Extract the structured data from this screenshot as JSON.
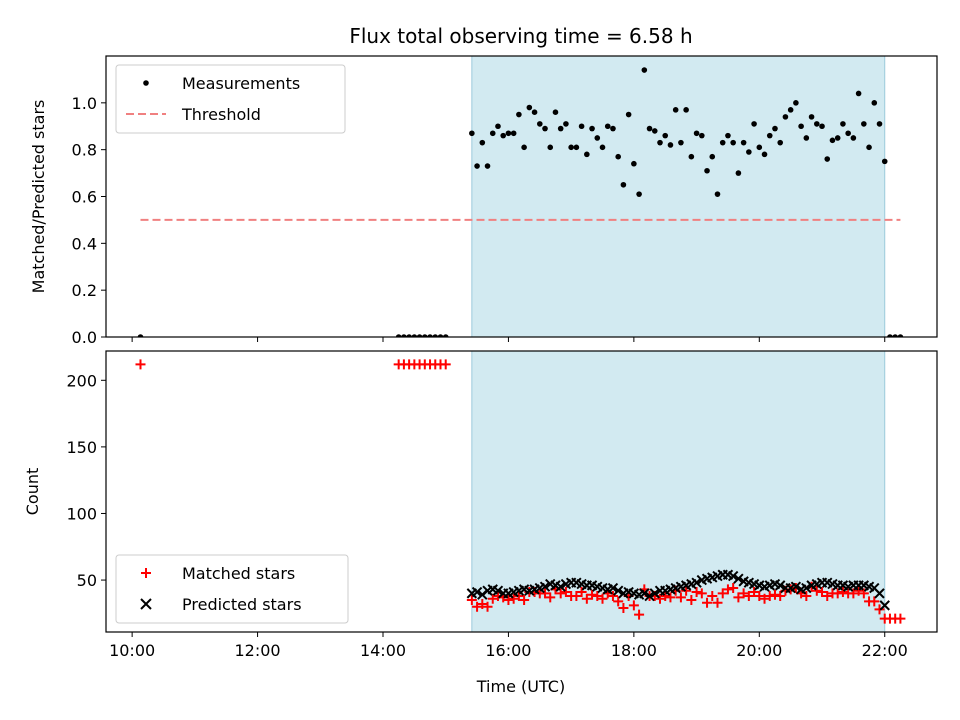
{
  "title": "Flux total observing time = 6.58 h",
  "xlabel": "Time (UTC)",
  "colors": {
    "measurement": "#000000",
    "threshold": "#f08080",
    "matched": "#ff0000",
    "predicted": "#000000",
    "shade": "#add8e6"
  },
  "chart_data": [
    {
      "type": "scatter",
      "ylabel": "Matched/Predicted stars",
      "xlim": [
        "09:35",
        "22:50"
      ],
      "ylim": [
        0,
        1.2
      ],
      "x_ticks": [
        "10:00",
        "12:00",
        "14:00",
        "16:00",
        "18:00",
        "20:00",
        "22:00"
      ],
      "y_ticks": [
        "0.0",
        "0.2",
        "0.4",
        "0.6",
        "0.8",
        "1.0"
      ],
      "y_tick_values": [
        0,
        0.2,
        0.4,
        0.6,
        0.8,
        1.0
      ],
      "shaded_interval": [
        "15:25",
        "22:00"
      ],
      "legend_position": "upper-left",
      "series": [
        {
          "name": "Measurements",
          "marker": "dot",
          "x": [
            "10:08",
            "14:15",
            "14:20",
            "14:25",
            "14:30",
            "14:35",
            "14:40",
            "14:45",
            "14:50",
            "14:55",
            "15:00",
            "15:25",
            "15:30",
            "15:35",
            "15:40",
            "15:45",
            "15:50",
            "15:55",
            "16:00",
            "16:05",
            "16:10",
            "16:15",
            "16:20",
            "16:25",
            "16:30",
            "16:35",
            "16:40",
            "16:45",
            "16:50",
            "16:55",
            "17:00",
            "17:05",
            "17:10",
            "17:15",
            "17:20",
            "17:25",
            "17:30",
            "17:35",
            "17:40",
            "17:45",
            "17:50",
            "17:55",
            "18:00",
            "18:05",
            "18:10",
            "18:15",
            "18:20",
            "18:25",
            "18:30",
            "18:35",
            "18:40",
            "18:45",
            "18:50",
            "18:55",
            "19:00",
            "19:05",
            "19:10",
            "19:15",
            "19:20",
            "19:25",
            "19:30",
            "19:35",
            "19:40",
            "19:45",
            "19:50",
            "19:55",
            "20:00",
            "20:05",
            "20:10",
            "20:15",
            "20:20",
            "20:25",
            "20:30",
            "20:35",
            "20:40",
            "20:45",
            "20:50",
            "20:55",
            "21:00",
            "21:05",
            "21:10",
            "21:15",
            "21:20",
            "21:25",
            "21:30",
            "21:35",
            "21:40",
            "21:45",
            "21:50",
            "21:55",
            "22:00",
            "22:05",
            "22:10",
            "22:15"
          ],
          "y": [
            0,
            0,
            0,
            0,
            0,
            0,
            0,
            0,
            0,
            0,
            0,
            0.87,
            0.73,
            0.83,
            0.73,
            0.87,
            0.9,
            0.86,
            0.87,
            0.87,
            0.95,
            0.81,
            0.98,
            0.96,
            0.91,
            0.89,
            0.81,
            0.96,
            0.89,
            0.91,
            0.81,
            0.81,
            0.9,
            0.78,
            0.89,
            0.85,
            0.81,
            0.9,
            0.89,
            0.77,
            0.65,
            0.95,
            0.74,
            0.61,
            1.14,
            0.89,
            0.88,
            0.83,
            0.86,
            0.82,
            0.97,
            0.83,
            0.97,
            0.77,
            0.87,
            0.86,
            0.71,
            0.77,
            0.61,
            0.83,
            0.86,
            0.83,
            0.7,
            0.83,
            0.79,
            0.91,
            0.81,
            0.78,
            0.86,
            0.89,
            0.83,
            0.94,
            0.97,
            1.0,
            0.9,
            0.85,
            0.94,
            0.91,
            0.9,
            0.76,
            0.84,
            0.85,
            0.91,
            0.87,
            0.85,
            1.04,
            0.91,
            0.81,
            1.0,
            0.91,
            0.75,
            0,
            0,
            0
          ]
        },
        {
          "name": "Threshold",
          "marker": "dashed-line",
          "x": [
            "10:08",
            "22:15"
          ],
          "y": [
            0.5,
            0.5
          ]
        }
      ]
    },
    {
      "type": "scatter",
      "ylabel": "Count",
      "xlim": [
        "09:35",
        "22:50"
      ],
      "ylim": [
        11,
        222
      ],
      "x_ticks": [
        "10:00",
        "12:00",
        "14:00",
        "16:00",
        "18:00",
        "20:00",
        "22:00"
      ],
      "y_ticks": [
        "50",
        "100",
        "150",
        "200"
      ],
      "y_tick_values": [
        50,
        100,
        150,
        200
      ],
      "shaded_interval": [
        "15:25",
        "22:00"
      ],
      "legend_position": "lower-left",
      "series": [
        {
          "name": "Matched stars",
          "marker": "plus",
          "x": [
            "10:08",
            "14:15",
            "14:20",
            "14:25",
            "14:30",
            "14:35",
            "14:40",
            "14:45",
            "14:50",
            "14:55",
            "15:00",
            "15:25",
            "15:30",
            "15:35",
            "15:40",
            "15:45",
            "15:50",
            "15:55",
            "16:00",
            "16:05",
            "16:10",
            "16:15",
            "16:20",
            "16:25",
            "16:30",
            "16:35",
            "16:40",
            "16:45",
            "16:50",
            "16:55",
            "17:00",
            "17:05",
            "17:10",
            "17:15",
            "17:20",
            "17:25",
            "17:30",
            "17:35",
            "17:40",
            "17:45",
            "17:50",
            "17:55",
            "18:00",
            "18:05",
            "18:10",
            "18:15",
            "18:20",
            "18:25",
            "18:30",
            "18:35",
            "18:40",
            "18:45",
            "18:50",
            "18:55",
            "19:00",
            "19:05",
            "19:10",
            "19:15",
            "19:20",
            "19:25",
            "19:30",
            "19:35",
            "19:40",
            "19:45",
            "19:50",
            "19:55",
            "20:00",
            "20:05",
            "20:10",
            "20:15",
            "20:20",
            "20:25",
            "20:30",
            "20:35",
            "20:40",
            "20:45",
            "20:50",
            "20:55",
            "21:00",
            "21:05",
            "21:10",
            "21:15",
            "21:20",
            "21:25",
            "21:30",
            "21:35",
            "21:40",
            "21:45",
            "21:50",
            "21:55",
            "22:00",
            "22:05",
            "22:10",
            "22:15"
          ],
          "y": [
            212,
            212,
            212,
            212,
            212,
            212,
            212,
            212,
            212,
            212,
            212,
            35,
            30,
            32,
            30,
            36,
            38,
            37,
            35,
            36,
            38,
            35,
            41,
            41,
            40,
            40,
            37,
            43,
            40,
            41,
            38,
            38,
            41,
            36,
            39,
            38,
            36,
            40,
            38,
            34,
            29,
            38,
            31,
            24,
            43,
            38,
            38,
            36,
            38,
            37,
            42,
            37,
            42,
            35,
            41,
            40,
            33,
            38,
            33,
            40,
            43,
            44,
            37,
            40,
            38,
            41,
            38,
            36,
            38,
            39,
            38,
            42,
            43,
            44,
            40,
            38,
            45,
            42,
            41,
            38,
            40,
            40,
            41,
            40,
            40,
            42,
            40,
            34,
            34,
            28,
            21,
            21,
            21,
            21
          ]
        },
        {
          "name": "Predicted stars",
          "marker": "x",
          "x": [
            "15:25",
            "15:30",
            "15:35",
            "15:40",
            "15:45",
            "15:50",
            "15:55",
            "16:00",
            "16:05",
            "16:10",
            "16:15",
            "16:20",
            "16:25",
            "16:30",
            "16:35",
            "16:40",
            "16:45",
            "16:50",
            "16:55",
            "17:00",
            "17:05",
            "17:10",
            "17:15",
            "17:20",
            "17:25",
            "17:30",
            "17:35",
            "17:40",
            "17:45",
            "17:50",
            "17:55",
            "18:00",
            "18:05",
            "18:10",
            "18:15",
            "18:20",
            "18:25",
            "18:30",
            "18:35",
            "18:40",
            "18:45",
            "18:50",
            "18:55",
            "19:00",
            "19:05",
            "19:10",
            "19:15",
            "19:20",
            "19:25",
            "19:30",
            "19:35",
            "19:40",
            "19:45",
            "19:50",
            "19:55",
            "20:00",
            "20:05",
            "20:10",
            "20:15",
            "20:20",
            "20:25",
            "20:30",
            "20:35",
            "20:40",
            "20:45",
            "20:50",
            "20:55",
            "21:00",
            "21:05",
            "21:10",
            "21:15",
            "21:20",
            "21:25",
            "21:30",
            "21:35",
            "21:40",
            "21:45",
            "21:50",
            "21:55",
            "22:00"
          ],
          "y": [
            40,
            41,
            39,
            42,
            43,
            42,
            40,
            40,
            41,
            42,
            43,
            42,
            43,
            44,
            45,
            47,
            46,
            45,
            47,
            48,
            48,
            47,
            46,
            46,
            45,
            44,
            43,
            44,
            42,
            40,
            41,
            40,
            39,
            40,
            38,
            40,
            42,
            42,
            43,
            44,
            45,
            46,
            47,
            48,
            50,
            51,
            52,
            53,
            54,
            54,
            53,
            51,
            49,
            48,
            47,
            46,
            45,
            46,
            47,
            46,
            44,
            44,
            45,
            43,
            44,
            46,
            47,
            48,
            48,
            47,
            46,
            46,
            45,
            46,
            46,
            46,
            45,
            44,
            40,
            31
          ]
        }
      ]
    }
  ]
}
